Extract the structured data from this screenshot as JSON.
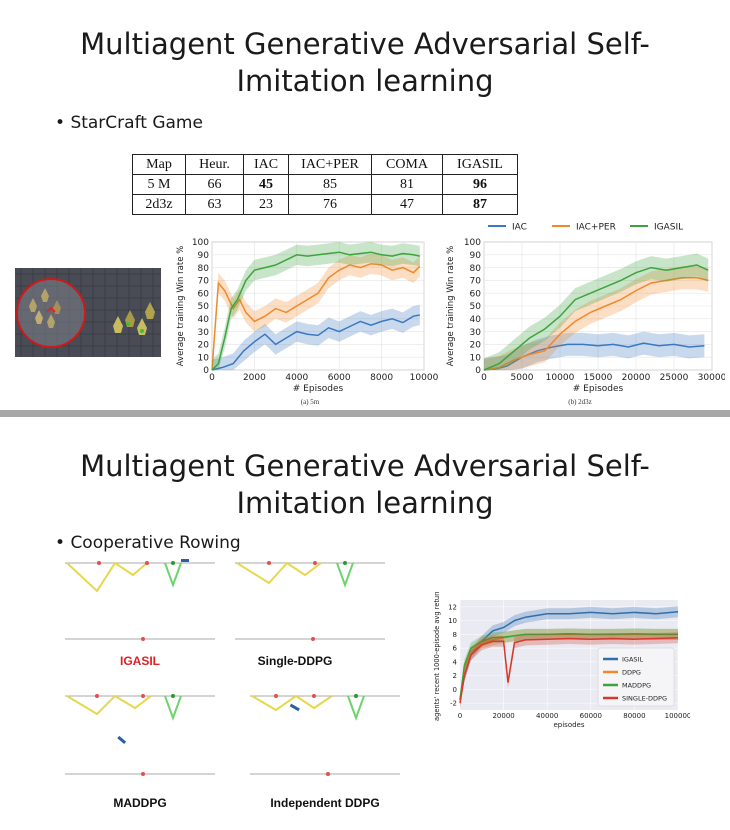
{
  "slide1": {
    "title_line1": "Multiagent Generative Adversarial Self-",
    "title_line2": "Imitation learning",
    "bullet": "StarCraft Game",
    "table": {
      "header": [
        "Map",
        "Heur.",
        "IAC",
        "IAC+PER",
        "COMA",
        "IGASIL"
      ],
      "rows": [
        [
          "5 M",
          "66",
          "45",
          "85",
          "81",
          "96"
        ],
        [
          "2d3z",
          "63",
          "23",
          "76",
          "47",
          "87"
        ]
      ]
    },
    "caption_a": "(a) 5m",
    "caption_b": "(b) 2d3z"
  },
  "slide2": {
    "title_line1": "Multiagent Generative Adversarial Self-",
    "title_line2": "Imitation learning",
    "bullet": "Cooperative Rowing",
    "panel_labels": [
      "IGASIL",
      "Single-DDPG",
      "MADDPG",
      "Independent DDPG"
    ],
    "accent_label_color": "#e02020"
  },
  "chart_data": [
    {
      "type": "line",
      "xlabel": "# Episodes",
      "ylabel": "Average training Win rate %",
      "xlim": [
        0,
        10000
      ],
      "ylim": [
        0,
        100
      ],
      "xticks": [
        0,
        2000,
        4000,
        6000,
        8000,
        10000
      ],
      "yticks": [
        0,
        10,
        20,
        30,
        40,
        50,
        60,
        70,
        80,
        90,
        100
      ],
      "grid": true,
      "series": [
        {
          "name": "IAC",
          "color": "#3a78c2",
          "x": [
            0,
            500,
            1000,
            1500,
            2000,
            2500,
            3000,
            3500,
            4000,
            4500,
            5000,
            5500,
            6000,
            6500,
            7000,
            7500,
            8000,
            8500,
            9000,
            9500,
            9800
          ],
          "y": [
            0,
            2,
            5,
            15,
            22,
            28,
            20,
            25,
            30,
            28,
            27,
            33,
            30,
            34,
            38,
            35,
            38,
            40,
            37,
            42,
            43
          ]
        },
        {
          "name": "IAC+PER",
          "color": "#ef8a2c",
          "x": [
            0,
            300,
            600,
            1000,
            1300,
            1600,
            2000,
            2500,
            3000,
            3500,
            4000,
            4500,
            5000,
            5500,
            6000,
            6500,
            7000,
            7500,
            8000,
            8500,
            9000,
            9500,
            9800
          ],
          "y": [
            0,
            68,
            62,
            48,
            55,
            45,
            38,
            42,
            48,
            45,
            50,
            55,
            60,
            72,
            78,
            82,
            80,
            83,
            82,
            78,
            80,
            76,
            81
          ]
        },
        {
          "name": "IGASIL",
          "color": "#3ea33e",
          "x": [
            0,
            300,
            600,
            900,
            1200,
            1600,
            2000,
            2500,
            3000,
            3500,
            4000,
            4500,
            5000,
            5500,
            6000,
            6500,
            7000,
            7500,
            8000,
            8500,
            9000,
            9500,
            9800
          ],
          "y": [
            0,
            5,
            25,
            48,
            55,
            70,
            78,
            80,
            82,
            86,
            90,
            89,
            90,
            91,
            92,
            90,
            91,
            92,
            90,
            89,
            91,
            90,
            89
          ]
        }
      ]
    },
    {
      "type": "line",
      "xlabel": "# Episodes",
      "ylabel": "Average training Win rate %",
      "xlim": [
        0,
        30000
      ],
      "ylim": [
        0,
        100
      ],
      "xticks": [
        0,
        5000,
        10000,
        15000,
        20000,
        25000,
        30000
      ],
      "yticks": [
        0,
        10,
        20,
        30,
        40,
        50,
        60,
        70,
        80,
        90,
        100
      ],
      "grid": true,
      "legend": "top",
      "series": [
        {
          "name": "IAC",
          "color": "#3a78c2",
          "x": [
            0,
            1500,
            3000,
            5000,
            7000,
            9000,
            11000,
            13000,
            15000,
            17000,
            19000,
            21000,
            23000,
            25000,
            27000,
            29000
          ],
          "y": [
            0,
            1,
            3,
            10,
            15,
            18,
            20,
            20,
            19,
            20,
            18,
            21,
            19,
            20,
            18,
            19
          ]
        },
        {
          "name": "IAC+PER",
          "color": "#ef8a2c",
          "x": [
            0,
            2000,
            4000,
            6000,
            8000,
            10000,
            12000,
            14000,
            16000,
            18000,
            20000,
            22000,
            24000,
            26000,
            28000,
            29500
          ],
          "y": [
            0,
            2,
            8,
            12,
            15,
            28,
            38,
            45,
            50,
            55,
            62,
            68,
            70,
            72,
            72,
            70
          ]
        },
        {
          "name": "IGASIL",
          "color": "#3ea33e",
          "x": [
            0,
            2000,
            4000,
            6000,
            8000,
            10000,
            12000,
            14000,
            16000,
            18000,
            20000,
            22000,
            24000,
            26000,
            28000,
            29500
          ],
          "y": [
            0,
            5,
            15,
            25,
            32,
            42,
            55,
            60,
            65,
            70,
            76,
            80,
            78,
            80,
            82,
            78
          ]
        }
      ]
    },
    {
      "type": "line",
      "xlabel": "episodes",
      "ylabel": "agents' recent 1000-episode avg return",
      "xlim": [
        0,
        100000
      ],
      "ylim": [
        -3,
        13
      ],
      "xticks": [
        0,
        20000,
        40000,
        60000,
        80000,
        100000
      ],
      "yticks": [
        -2,
        0,
        2,
        4,
        6,
        8,
        10,
        12
      ],
      "grid": true,
      "legend": "bottom-right",
      "series": [
        {
          "name": "IGASIL",
          "color": "#2f6fb0",
          "x": [
            0,
            2000,
            5000,
            10000,
            15000,
            20000,
            25000,
            30000,
            40000,
            50000,
            60000,
            70000,
            80000,
            90000,
            100000
          ],
          "y": [
            -1.5,
            2,
            5,
            7,
            8.5,
            9,
            10,
            10.5,
            11,
            11,
            11.2,
            11,
            11.2,
            11,
            11.3
          ]
        },
        {
          "name": "DDPG",
          "color": "#ef8a2c",
          "x": [
            0,
            2000,
            5000,
            10000,
            15000,
            20000,
            25000,
            30000,
            40000,
            50000,
            60000,
            70000,
            80000,
            90000,
            100000
          ],
          "y": [
            -1.5,
            3,
            5.5,
            6.8,
            7.2,
            7.5,
            7.8,
            8,
            8,
            8,
            8,
            8,
            8,
            8,
            8
          ]
        },
        {
          "name": "MADDPG",
          "color": "#3ea33e",
          "x": [
            0,
            2000,
            5000,
            10000,
            15000,
            20000,
            25000,
            30000,
            40000,
            50000,
            60000,
            70000,
            80000,
            90000,
            100000
          ],
          "y": [
            -1.5,
            3.5,
            6,
            7,
            7.5,
            7.6,
            7.8,
            8,
            8,
            8.1,
            8,
            8,
            8.1,
            8,
            8
          ]
        },
        {
          "name": "SINGLE-DDPG",
          "color": "#d63a2a",
          "x": [
            0,
            2000,
            5000,
            10000,
            15000,
            20000,
            22000,
            25000,
            30000,
            40000,
            50000,
            60000,
            70000,
            80000,
            90000,
            100000
          ],
          "y": [
            -2,
            2,
            5,
            6.5,
            7,
            7,
            1,
            6.8,
            7.2,
            7.3,
            7.4,
            7.3,
            7.4,
            7.3,
            7.4,
            7.5
          ]
        }
      ]
    }
  ]
}
